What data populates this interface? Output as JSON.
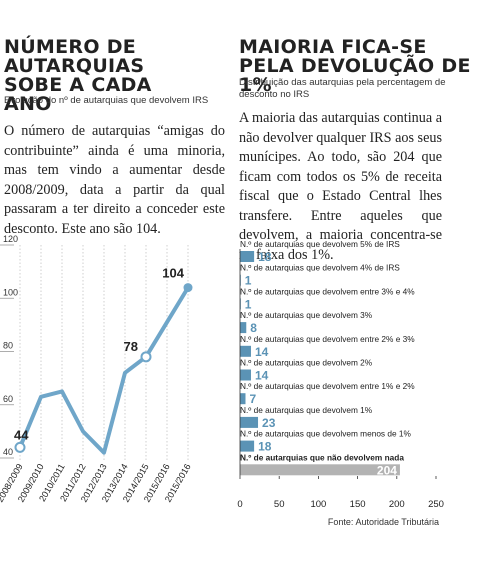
{
  "chart_data": [
    {
      "type": "line",
      "title": "NÚMERO DE AUTARQUIAS SOBE A CADA ANO",
      "subtitle": "Evolução do nº de autarquias que devolvem IRS",
      "body": "O número de autarquias “amigas do contribuinte” ainda é uma minoria, mas tem vindo a aumentar desde 2008/2009, data a partir da qual passaram a ter direito a conceder este desconto. Este ano são 104.",
      "categories": [
        "2008/2009",
        "2009/2010",
        "2010/2011",
        "2011/2012",
        "2012/2013",
        "2013/2014",
        "2014/2015",
        "2015/2016",
        "2015/2016"
      ],
      "values": [
        44,
        63,
        65,
        50,
        42,
        72,
        78,
        91,
        104
      ],
      "value_labels": [
        "44",
        null,
        null,
        null,
        null,
        null,
        "78",
        null,
        "104"
      ],
      "color": "#6fa6c9",
      "ylim": [
        40,
        120
      ],
      "yticks": [
        40,
        60,
        80,
        100,
        120
      ]
    },
    {
      "type": "hbar",
      "title": "MAIORIA FICA-SE PELA DEVOLUÇÃO DE 1%",
      "subtitle": "Distribuição das autarquias pela percentagem de desconto no IRS",
      "body": "A maioria das autarquias continua a não devolver qualquer IRS aos seus munícipes. Ao todo, são 204 que ficam com todos os 5% de receita fiscal que o Estado Central lhes transfere. Entre aqueles que devolvem, a maioria concentra-se na faixa dos 1%.",
      "categories": [
        "N.º de autarquias que devolvem 5% de IRS",
        "N.º de autarquias que devolvem 4% de IRS",
        "N.º de autarquias que devolvem entre 3% e 4%",
        "N.º de autarquias que devolvem 3%",
        "N.º de autarquias que devolvem entre 2% e 3%",
        "N.º de autarquias que devolvem 2%",
        "N.º de autarquias que devolvem entre 1% e 2%",
        "N.º de autarquias que devolvem 1%",
        "N.º de autarquias que devolvem menos de 1%",
        "N.º de autarquias que não devolvem nada"
      ],
      "values": [
        18,
        1,
        1,
        8,
        14,
        14,
        7,
        23,
        18,
        204
      ],
      "colors": [
        "#5b93b5",
        "#5b93b5",
        "#5b93b5",
        "#5b93b5",
        "#5b93b5",
        "#5b93b5",
        "#5b93b5",
        "#5b93b5",
        "#5b93b5",
        "#b3b3b3"
      ],
      "xlim": [
        0,
        250
      ],
      "xticks": [
        0,
        50,
        100,
        150,
        200,
        250
      ],
      "source": "Fonte: Autoridade Tributária"
    }
  ]
}
